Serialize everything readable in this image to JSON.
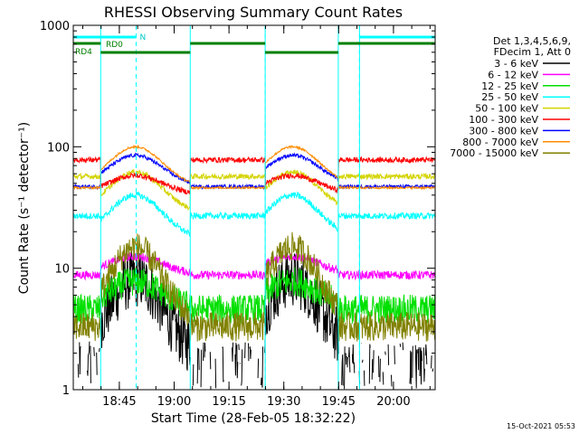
{
  "chart_data": {
    "type": "line",
    "title": "RHESSI Observing Summary Count Rates",
    "xlabel": "Start Time (28-Feb-05 18:32:22)",
    "ylabel": "Count Rate (s⁻¹ detector⁻¹)",
    "yscale": "log",
    "ylim": [
      1,
      1000
    ],
    "xlim_min": [
      0,
      99
    ],
    "x_ticks": [
      {
        "min": 12.6,
        "label": "18:45"
      },
      {
        "min": 27.6,
        "label": "19:00"
      },
      {
        "min": 42.6,
        "label": "19:15"
      },
      {
        "min": 57.6,
        "label": "19:30"
      },
      {
        "min": 72.6,
        "label": "19:45"
      },
      {
        "min": 87.6,
        "label": "20:00"
      }
    ],
    "y_ticks": [
      {
        "value": 1,
        "label": "1"
      },
      {
        "value": 10,
        "label": "10"
      },
      {
        "value": 100,
        "label": "100"
      },
      {
        "value": 1000,
        "label": "1000"
      }
    ],
    "legend_header": [
      "Det 1,3,4,5,6,9,",
      "FDecim 1, Att 0"
    ],
    "flags": {
      "N_label": "N",
      "RD0_label": "RD0",
      "RD4_label": "RD4",
      "N_ranges": [
        [
          0,
          17.2
        ],
        [
          78.3,
          99
        ]
      ],
      "RD0_ranges": [
        [
          0,
          7.5
        ],
        [
          32,
          52.5
        ],
        [
          72.5,
          99
        ]
      ],
      "RD4_ranges": [
        [
          7.5,
          32
        ],
        [
          52.5,
          72.5
        ]
      ]
    },
    "markers_solid": [
      7.5,
      32,
      52.5,
      72.5,
      78.3
    ],
    "markers_dashed": [
      17.2,
      52.5,
      78.3,
      99
    ],
    "night_ranges": [
      [
        0,
        7.5
      ],
      [
        32,
        52.5
      ],
      [
        72.5,
        99
      ]
    ],
    "flare_peaks": [
      17.0,
      60.0
    ],
    "series": [
      {
        "name": "3 - 6 keV",
        "color": "#000000",
        "day_base": 1.9,
        "peak": 8.2,
        "night_base": 0.3,
        "noise": 0.55
      },
      {
        "name": "6 - 12 keV",
        "color": "#ff00ff",
        "day_base": 8.8,
        "peak": 12.5,
        "night_base": 8.8,
        "noise": 0.08
      },
      {
        "name": "12 - 25 keV",
        "color": "#00e000",
        "day_base": 4.5,
        "peak": 7.8,
        "night_base": 4.6,
        "noise": 0.28
      },
      {
        "name": "25 - 50 keV",
        "color": "#00ffff",
        "day_base": 17,
        "peak": 40,
        "night_base": 27,
        "noise": 0.06
      },
      {
        "name": "50 - 100 keV",
        "color": "#d4d400",
        "day_base": 28,
        "peak": 62,
        "night_base": 57,
        "noise": 0.05
      },
      {
        "name": "100 - 300 keV",
        "color": "#ff0000",
        "day_base": 40,
        "peak": 58,
        "night_base": 78,
        "noise": 0.05
      },
      {
        "name": "300 - 800 keV",
        "color": "#0000ff",
        "day_base": 47,
        "peak": 85,
        "night_base": 47,
        "noise": 0.035
      },
      {
        "name": "800 - 7000 keV",
        "color": "#ff8c00",
        "day_base": 46,
        "peak": 100,
        "night_base": 46,
        "noise": 0.02
      },
      {
        "name": "7000 - 15000 keV",
        "color": "#808000",
        "day_base": 3.3,
        "peak": 15,
        "night_base": 3.3,
        "noise": 0.28
      }
    ]
  },
  "footer_timestamp": "15-Oct-2021 05:53"
}
